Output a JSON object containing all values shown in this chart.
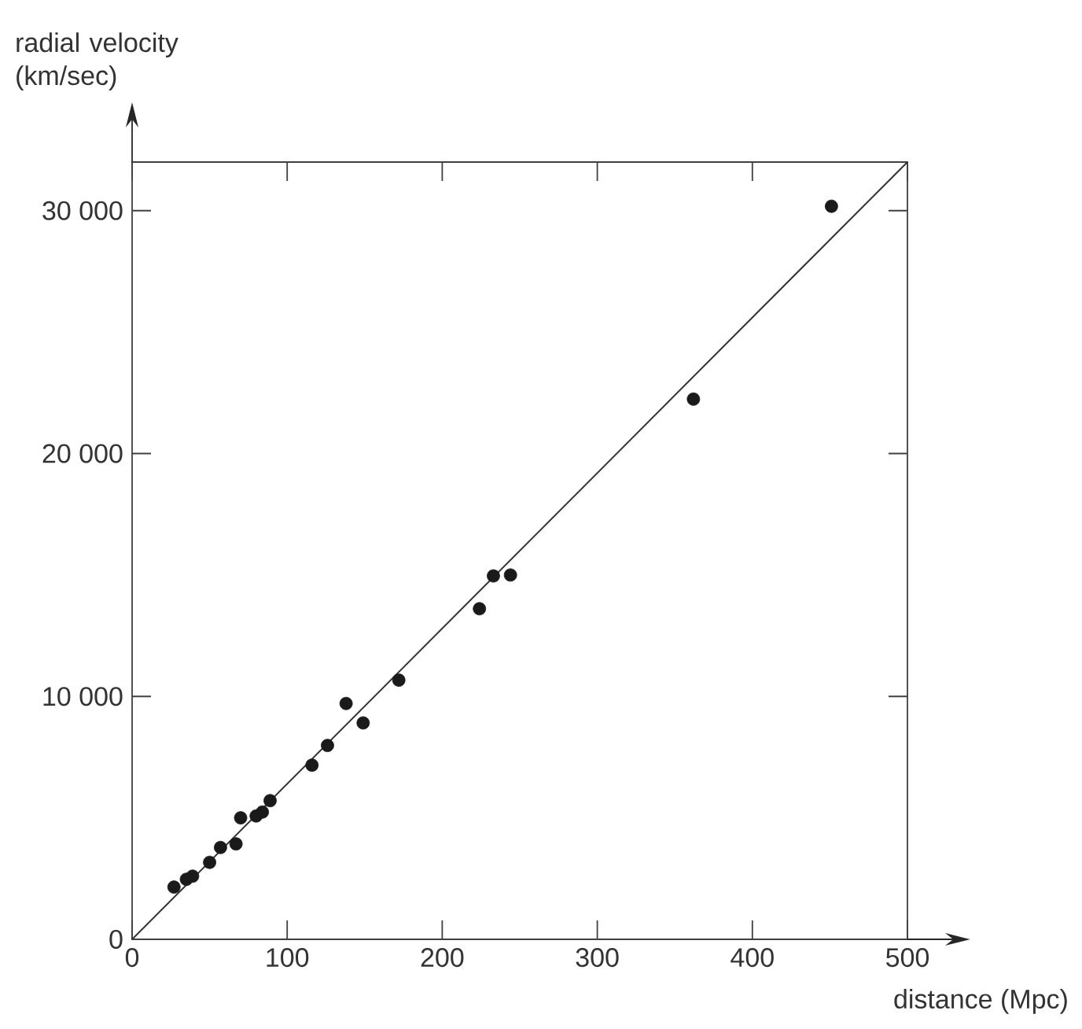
{
  "chart_data": {
    "type": "scatter",
    "xlabel": "distance (Mpc)",
    "ylabel": "radial velocity (km/sec)",
    "xlim": [
      0,
      500
    ],
    "ylim": [
      0,
      32000
    ],
    "marker": "circle",
    "xticks": [
      0,
      100,
      200,
      300,
      400,
      500
    ],
    "yticks": [
      0,
      {
        "value": 10000,
        "label": "10 000"
      },
      {
        "value": 20000,
        "label": "20 000"
      },
      {
        "value": 30000,
        "label": "30 000"
      }
    ],
    "series": [
      {
        "color": "#1a1a1a",
        "x": [
          27,
          35,
          39,
          50,
          57,
          67,
          70,
          80,
          84,
          89,
          116,
          126,
          138,
          149,
          172,
          224,
          233,
          244,
          362,
          451
        ],
        "values": [
          2150,
          2470,
          2600,
          3170,
          3780,
          3930,
          5000,
          5080,
          5240,
          5710,
          7170,
          7980,
          9710,
          8910,
          10670,
          13610,
          14960,
          15000,
          22240,
          30180
        ]
      },
      {
        "type": "line",
        "marker": "none",
        "color": "#333333",
        "x": [
          0,
          500
        ],
        "values": [
          0,
          32000
        ]
      }
    ]
  }
}
